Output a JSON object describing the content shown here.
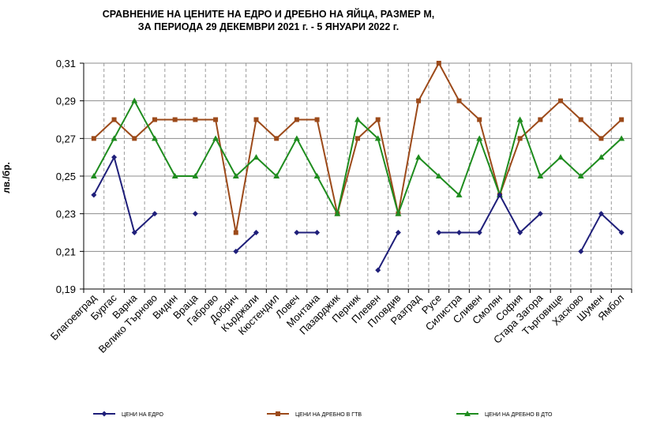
{
  "chart_data": {
    "type": "line",
    "title_line1": "СРАВНЕНИЕ НА ЦЕНИТЕ НА ЕДРО И ДРЕБНО НА ЯЙЦА, РАЗМЕР М,",
    "title_line2": "ЗА ПЕРИОДА 29 ДЕКЕМВРИ 2021 г. - 5 ЯНУАРИ 2022  г.",
    "ylabel": "лв./бр.",
    "ylim": [
      0.19,
      0.31
    ],
    "yticks": [
      "0,19",
      "0,21",
      "0,23",
      "0,25",
      "0,27",
      "0,29",
      "0,31"
    ],
    "grid": "horizontal solid, vertical dashed",
    "legend_position": "bottom",
    "categories": [
      "Благоевград",
      "Бургас",
      "Варна",
      "Велико Търново",
      "Видин",
      "Враца",
      "Габрово",
      "Добрич",
      "Кърджали",
      "Кюстендил",
      "Ловеч",
      "Монтана",
      "Пазарджик",
      "Перник",
      "Плевен",
      "Пловдив",
      "Разград",
      "Русе",
      "Силистра",
      "Сливен",
      "Смолян",
      "София",
      "Стара Загора",
      "Търговище",
      "Хасково",
      "Шумен",
      "Ямбол"
    ],
    "series": [
      {
        "name": "ЦЕНИ НА ЕДРО",
        "color": "#1f1f7a",
        "marker": "diamond",
        "values": [
          0.24,
          0.26,
          0.22,
          0.23,
          null,
          0.23,
          null,
          0.21,
          0.22,
          null,
          0.22,
          0.22,
          null,
          null,
          0.2,
          0.22,
          null,
          0.22,
          0.22,
          0.22,
          0.24,
          0.22,
          0.23,
          null,
          0.21,
          0.23,
          0.22
        ]
      },
      {
        "name": "ЦЕНИ НА ДРЕБНО В ГТВ",
        "color": "#9c4a1a",
        "marker": "square",
        "values": [
          0.27,
          0.28,
          0.27,
          0.28,
          0.28,
          0.28,
          0.28,
          0.22,
          0.28,
          0.27,
          0.28,
          0.28,
          0.23,
          0.27,
          0.28,
          0.23,
          0.29,
          0.31,
          0.29,
          0.28,
          0.24,
          0.27,
          0.28,
          0.29,
          0.28,
          0.27,
          0.28
        ]
      },
      {
        "name": "ЦЕНИ НА ДРЕБНО В ДТО",
        "color": "#1e8c1e",
        "marker": "triangle",
        "values": [
          0.25,
          0.27,
          0.29,
          0.27,
          0.25,
          0.25,
          0.27,
          0.25,
          0.26,
          0.25,
          0.27,
          0.25,
          0.23,
          0.28,
          0.27,
          0.23,
          0.26,
          0.25,
          0.24,
          0.27,
          0.24,
          0.28,
          0.25,
          0.26,
          0.25,
          0.26,
          0.27
        ]
      }
    ]
  }
}
